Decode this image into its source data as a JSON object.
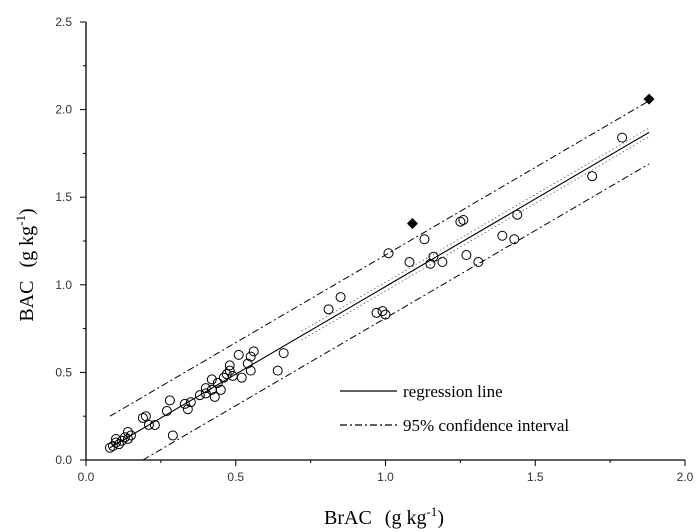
{
  "chart_data": {
    "type": "scatter",
    "xlabel": "BrAC",
    "ylabel": "BAC",
    "unit_prefix": "g kg",
    "unit_exponent": "-1",
    "xlim": [
      0.0,
      2.0
    ],
    "ylim": [
      0.0,
      2.5
    ],
    "x_ticks": [
      "0.0",
      "0.5",
      "1.0",
      "1.5",
      "2.0"
    ],
    "y_ticks": [
      "0.0",
      "0.5",
      "1.0",
      "1.5",
      "2.0",
      "2.5"
    ],
    "grid": false,
    "legend_position": "bottom-right",
    "legend": [
      {
        "label": "regression line",
        "style": "solid"
      },
      {
        "label": "95% confidence interval",
        "style": "dash-dot"
      }
    ],
    "series": [
      {
        "marker": "open-circle",
        "points": [
          [
            0.08,
            0.07
          ],
          [
            0.09,
            0.08
          ],
          [
            0.1,
            0.1
          ],
          [
            0.1,
            0.12
          ],
          [
            0.11,
            0.09
          ],
          [
            0.12,
            0.11
          ],
          [
            0.13,
            0.13
          ],
          [
            0.14,
            0.12
          ],
          [
            0.14,
            0.16
          ],
          [
            0.15,
            0.14
          ],
          [
            0.19,
            0.24
          ],
          [
            0.2,
            0.25
          ],
          [
            0.21,
            0.2
          ],
          [
            0.23,
            0.2
          ],
          [
            0.27,
            0.28
          ],
          [
            0.28,
            0.34
          ],
          [
            0.29,
            0.14
          ],
          [
            0.33,
            0.32
          ],
          [
            0.34,
            0.29
          ],
          [
            0.35,
            0.33
          ],
          [
            0.38,
            0.37
          ],
          [
            0.4,
            0.41
          ],
          [
            0.4,
            0.38
          ],
          [
            0.42,
            0.46
          ],
          [
            0.42,
            0.4
          ],
          [
            0.43,
            0.36
          ],
          [
            0.44,
            0.44
          ],
          [
            0.45,
            0.4
          ],
          [
            0.46,
            0.47
          ],
          [
            0.47,
            0.49
          ],
          [
            0.48,
            0.54
          ],
          [
            0.48,
            0.51
          ],
          [
            0.49,
            0.48
          ],
          [
            0.51,
            0.6
          ],
          [
            0.52,
            0.47
          ],
          [
            0.54,
            0.55
          ],
          [
            0.55,
            0.59
          ],
          [
            0.55,
            0.51
          ],
          [
            0.56,
            0.62
          ],
          [
            0.64,
            0.51
          ],
          [
            0.66,
            0.61
          ],
          [
            0.81,
            0.86
          ],
          [
            0.85,
            0.93
          ],
          [
            0.97,
            0.84
          ],
          [
            0.99,
            0.85
          ],
          [
            1.0,
            0.83
          ],
          [
            1.01,
            1.18
          ],
          [
            1.08,
            1.13
          ],
          [
            1.13,
            1.26
          ],
          [
            1.15,
            1.12
          ],
          [
            1.16,
            1.16
          ],
          [
            1.19,
            1.13
          ],
          [
            1.25,
            1.36
          ],
          [
            1.26,
            1.37
          ],
          [
            1.27,
            1.17
          ],
          [
            1.31,
            1.13
          ],
          [
            1.39,
            1.28
          ],
          [
            1.43,
            1.26
          ],
          [
            1.44,
            1.4
          ],
          [
            1.69,
            1.62
          ],
          [
            1.79,
            1.84
          ]
        ]
      },
      {
        "marker": "filled-diamond",
        "points": [
          [
            1.09,
            1.35
          ],
          [
            1.88,
            2.06
          ]
        ]
      }
    ],
    "regression_line": {
      "slope": 1.0,
      "intercept": -0.01,
      "x_range": [
        0.08,
        1.88
      ]
    },
    "confidence_band_inner": {
      "offset": 0.025,
      "x_range": [
        0.72,
        1.88
      ]
    },
    "prediction_band": {
      "offset": 0.18,
      "x_range": [
        0.08,
        1.88
      ]
    }
  }
}
